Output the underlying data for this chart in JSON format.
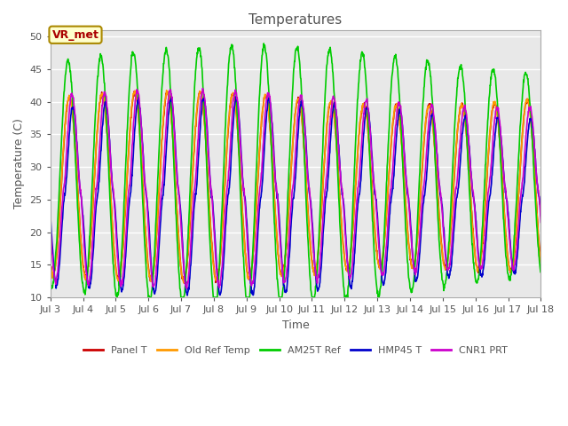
{
  "title": "Temperatures",
  "xlabel": "Time",
  "ylabel": "Temperature (C)",
  "ylim": [
    10,
    51
  ],
  "yticks": [
    10,
    15,
    20,
    25,
    30,
    35,
    40,
    45,
    50
  ],
  "x_start_day": 3,
  "x_end_day": 18,
  "x_tick_days": [
    3,
    4,
    5,
    6,
    7,
    8,
    9,
    10,
    11,
    12,
    13,
    14,
    15,
    16,
    17,
    18
  ],
  "x_tick_labels": [
    "Jul 3",
    "Jul 4",
    "Jul 5",
    "Jul 6",
    "Jul 7",
    "Jul 8",
    "Jul 9",
    "Jul 10",
    "Jul 11",
    "Jul 12",
    "Jul 13",
    "Jul 14",
    "Jul 15",
    "Jul 16",
    "Jul 17",
    "Jul 18"
  ],
  "colors": {
    "Panel T": "#cc0000",
    "Old Ref Temp": "#ff9900",
    "AM25T Ref": "#00cc00",
    "HMP45 T": "#0000cc",
    "CNR1 PRT": "#cc00cc"
  },
  "legend_labels": [
    "Panel T",
    "Old Ref Temp",
    "AM25T Ref",
    "HMP45 T",
    "CNR1 PRT"
  ],
  "annotation_text": "VR_met",
  "bg_color": "#e8e8e8",
  "fig_bg": "#ffffff",
  "title_color": "#555555",
  "axes_label_color": "#555555",
  "tick_color": "#555555",
  "grid_color": "#ffffff",
  "linewidth": 1.2,
  "figsize": [
    6.4,
    4.8
  ],
  "dpi": 100
}
